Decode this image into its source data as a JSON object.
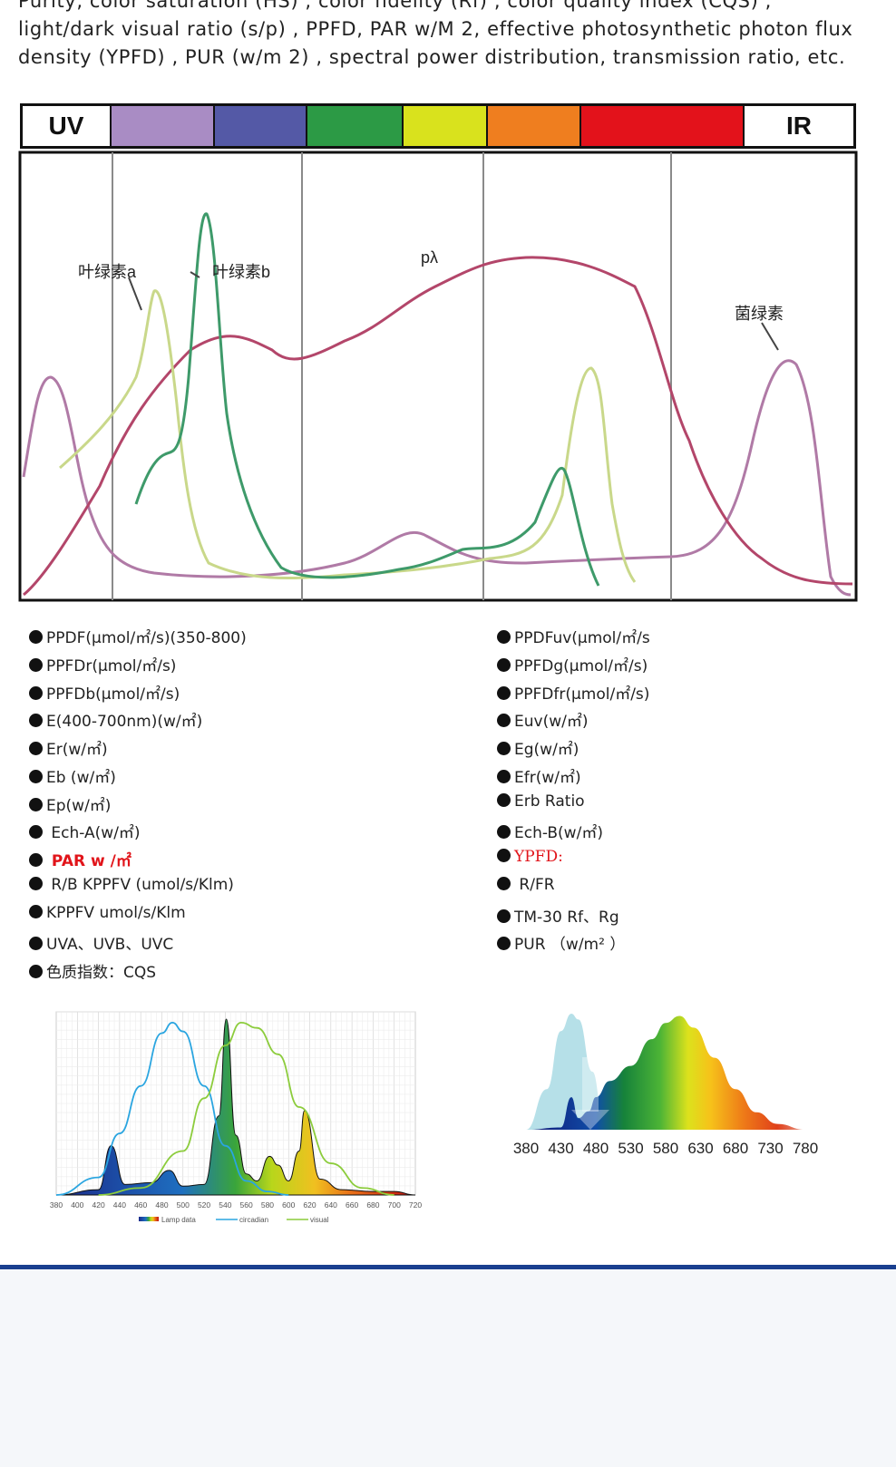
{
  "intro_lines": [
    "Purity, color saturation (HS) , color fidelity (Rf) , color quality index (CQS) ,",
    "light/dark visual ratio (s/p) , PPFD, PAR w/M 2, effective photosynthetic photon flux",
    "density (YPFD) , PUR (w/m 2) , spectral power distribution, transmission ratio, etc."
  ],
  "spectrum_band": {
    "left_label": "UV",
    "right_label": "IR",
    "colors": [
      "#a98cc4",
      "#5459a6",
      "#2c9a45",
      "#d9e21d",
      "#ef7e1f",
      "#e3121b"
    ]
  },
  "absorption_chart": {
    "labels": {
      "chl_a": "叶绿素a",
      "chl_b": "叶绿素b",
      "p_lambda": "pλ",
      "phytochrome": "菌绿素"
    },
    "curve_colors": {
      "p_lambda": "#b3466a",
      "chl_a": "#c9d88a",
      "chl_b": "#3e9a6a",
      "phytochrome": "#b07aa6"
    }
  },
  "params_left": [
    "PPDF(μmol/㎡/s)(350-800)",
    "PPFDr(μmol/㎡/s)",
    "PPFDb(μmol/㎡/s)",
    "E(400-700nm)(w/㎡)",
    "Er(w/㎡)",
    "Eb (w/㎡)",
    "Ep(w/㎡)",
    " Ech-A(w/㎡)",
    " PAR  w /㎡",
    " R/B  KPPFV (umol/s/Klm)",
    "KPPFV   umol/s/Klm",
    "UVA、UVB、UVC",
    "色质指数：CQS"
  ],
  "params_right": [
    "PPDFuv(μmol/㎡/s",
    "PPFDg(μmol/㎡/s)",
    "PPFDfr(μmol/㎡/s)",
    "Euv(w/㎡)",
    "Eg(w/㎡)",
    "Efr(w/㎡)",
    "Erb Ratio",
    "Ech-B(w/㎡)",
    "YPFD:",
    " R/FR",
    "TM-30  Rf、Rg",
    "PUR  （w/m²  ）"
  ],
  "chart_data": [
    {
      "type": "area",
      "x_ticks": [
        "380",
        "400",
        "420",
        "440",
        "460",
        "480",
        "500",
        "520",
        "540",
        "560",
        "580",
        "600",
        "620",
        "640",
        "660",
        "680",
        "700",
        "720"
      ],
      "xlim": [
        380,
        720
      ],
      "legend": [
        "Lamp data",
        "circadian",
        "visual"
      ],
      "legend_position": "bottom",
      "grid": true,
      "series": [
        {
          "name": "Lamp data",
          "x": [
            380,
            420,
            432,
            445,
            470,
            487,
            500,
            520,
            534,
            541,
            550,
            560,
            570,
            582,
            590,
            600,
            610,
            615,
            630,
            650,
            680,
            700,
            720
          ],
          "values": [
            0,
            0.03,
            0.28,
            0.06,
            0.07,
            0.14,
            0.05,
            0.06,
            0.45,
            1.0,
            0.34,
            0.12,
            0.08,
            0.22,
            0.17,
            0.08,
            0.25,
            0.48,
            0.09,
            0.03,
            0.02,
            0.02,
            0
          ]
        },
        {
          "name": "circadian",
          "x": [
            380,
            420,
            440,
            460,
            480,
            490,
            500,
            520,
            540,
            560,
            580,
            600
          ],
          "values": [
            0,
            0.1,
            0.35,
            0.62,
            0.92,
            0.98,
            0.93,
            0.62,
            0.28,
            0.08,
            0.02,
            0
          ]
        },
        {
          "name": "visual",
          "x": [
            420,
            460,
            500,
            520,
            540,
            555,
            570,
            590,
            610,
            640,
            670,
            700
          ],
          "values": [
            0,
            0.04,
            0.25,
            0.55,
            0.85,
            0.98,
            0.95,
            0.8,
            0.5,
            0.18,
            0.04,
            0
          ]
        }
      ]
    },
    {
      "type": "area",
      "x_ticks": [
        "380",
        "430",
        "480",
        "530",
        "580",
        "630",
        "680",
        "730",
        "780"
      ],
      "xlim": [
        380,
        780
      ],
      "series": [
        {
          "name": "",
          "x": [
            380,
            430,
            445,
            455,
            470,
            480,
            500,
            530,
            560,
            580,
            600,
            620,
            650,
            680,
            710,
            740,
            780
          ],
          "values": [
            0,
            0.02,
            0.28,
            0.1,
            0.16,
            0.28,
            0.42,
            0.55,
            0.78,
            0.92,
            0.98,
            0.88,
            0.62,
            0.35,
            0.15,
            0.05,
            0
          ]
        },
        {
          "name": "",
          "x": [
            380,
            410,
            430,
            445,
            455,
            475,
            490,
            510
          ],
          "values": [
            0,
            0.35,
            0.85,
            1.0,
            0.95,
            0.5,
            0.15,
            0
          ]
        }
      ]
    }
  ]
}
